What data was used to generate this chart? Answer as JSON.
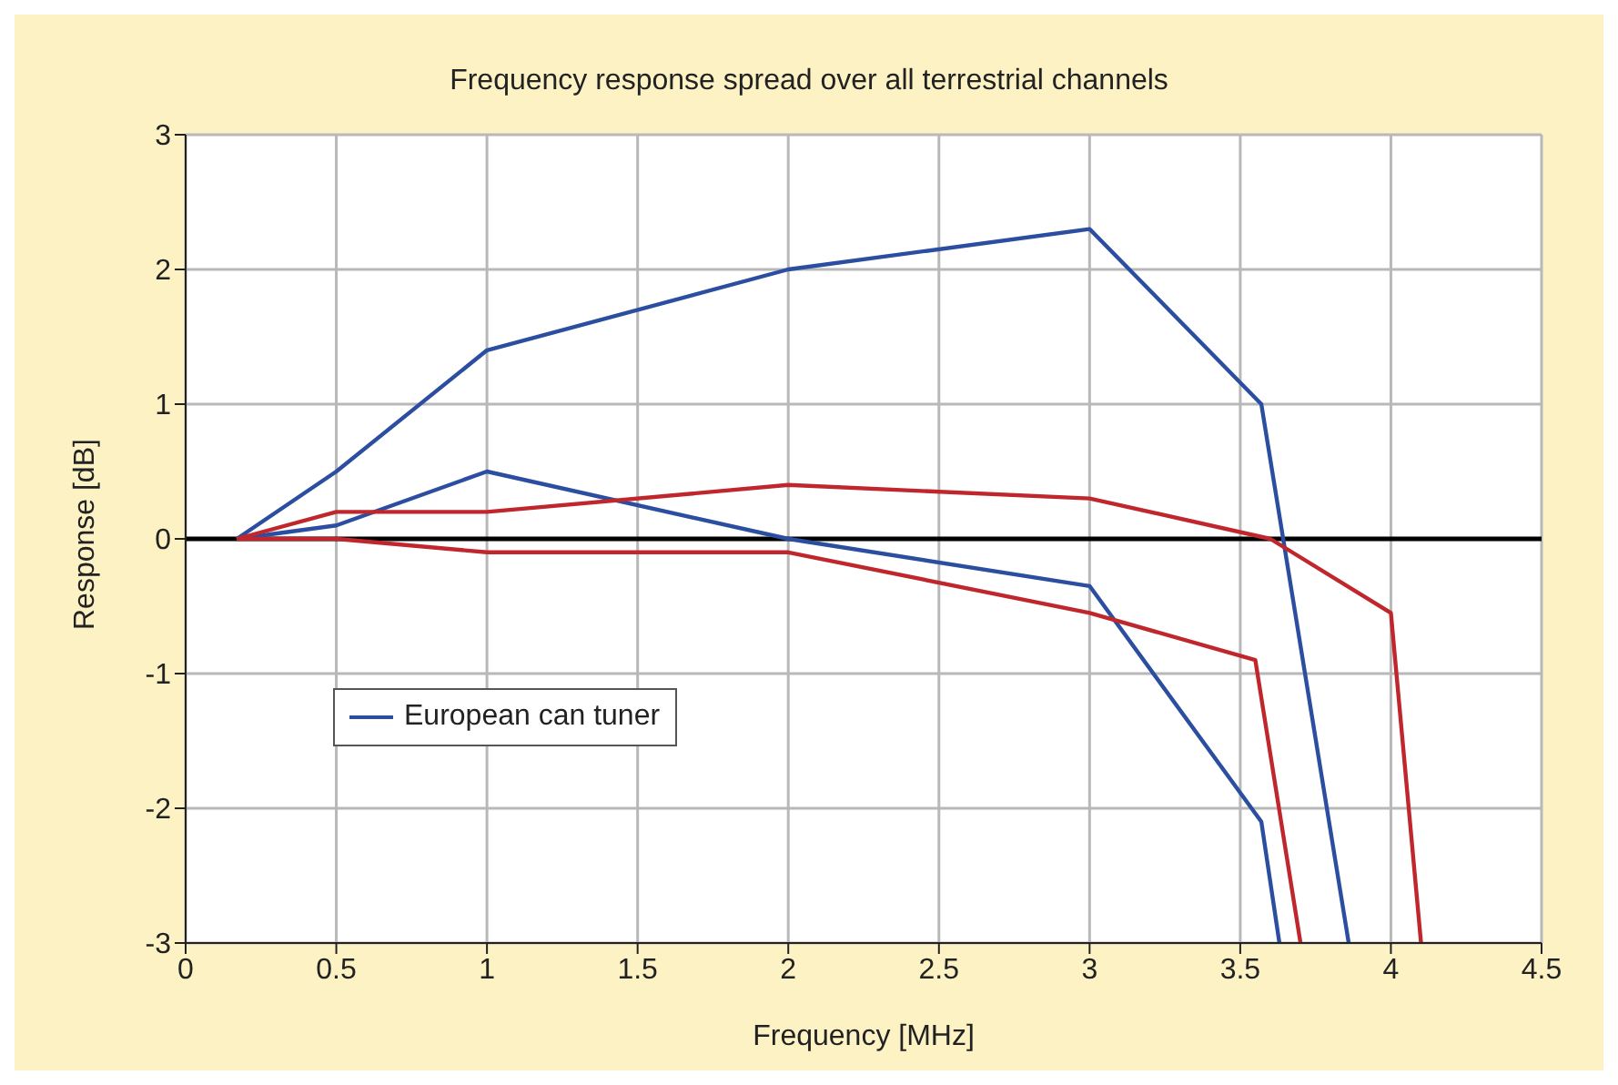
{
  "chart_data": {
    "type": "line",
    "title": "Frequency response spread over all terrestrial channels",
    "xlabel": "Frequency [MHz]",
    "ylabel": "Response [dB]",
    "xlim": [
      0,
      4.5
    ],
    "xticks": [
      0,
      0.5,
      1,
      1.5,
      2,
      2.5,
      3,
      3.5,
      4,
      4.5
    ],
    "ylim": [
      -3,
      3
    ],
    "yticks": [
      -3,
      -2,
      -1,
      0,
      1,
      2,
      3
    ],
    "grid": true,
    "legend": "bottom left",
    "marker": "none",
    "line_style": "solid",
    "ref_lines": [
      {
        "axis": "y",
        "value": 0,
        "color": "#000000"
      }
    ],
    "series": [
      {
        "name": "European can tuner",
        "color": "#2b4ea0",
        "x": [
          0.17,
          0.5,
          1,
          2,
          3,
          3.57,
          3.86
        ],
        "values": [
          0,
          0.5,
          1.4,
          2.0,
          2.3,
          1.0,
          -3
        ]
      },
      {
        "color": "#2b4ea0",
        "x": [
          0.17,
          0.5,
          1,
          2,
          3,
          3.57,
          3.63
        ],
        "values": [
          0,
          0.1,
          0.5,
          0,
          -0.35,
          -2.1,
          -3
        ]
      },
      {
        "color": "#c0272d",
        "x": [
          0.17,
          0.5,
          1,
          2,
          3,
          3.6,
          4,
          4.1
        ],
        "values": [
          0,
          0.2,
          0.2,
          0.4,
          0.3,
          0,
          -0.55,
          -3
        ]
      },
      {
        "color": "#c0272d",
        "x": [
          0.17,
          0.5,
          1,
          2,
          3,
          3.55,
          3.7
        ],
        "values": [
          0,
          0,
          -0.1,
          -0.1,
          -0.55,
          -0.9,
          -3
        ]
      }
    ]
  }
}
